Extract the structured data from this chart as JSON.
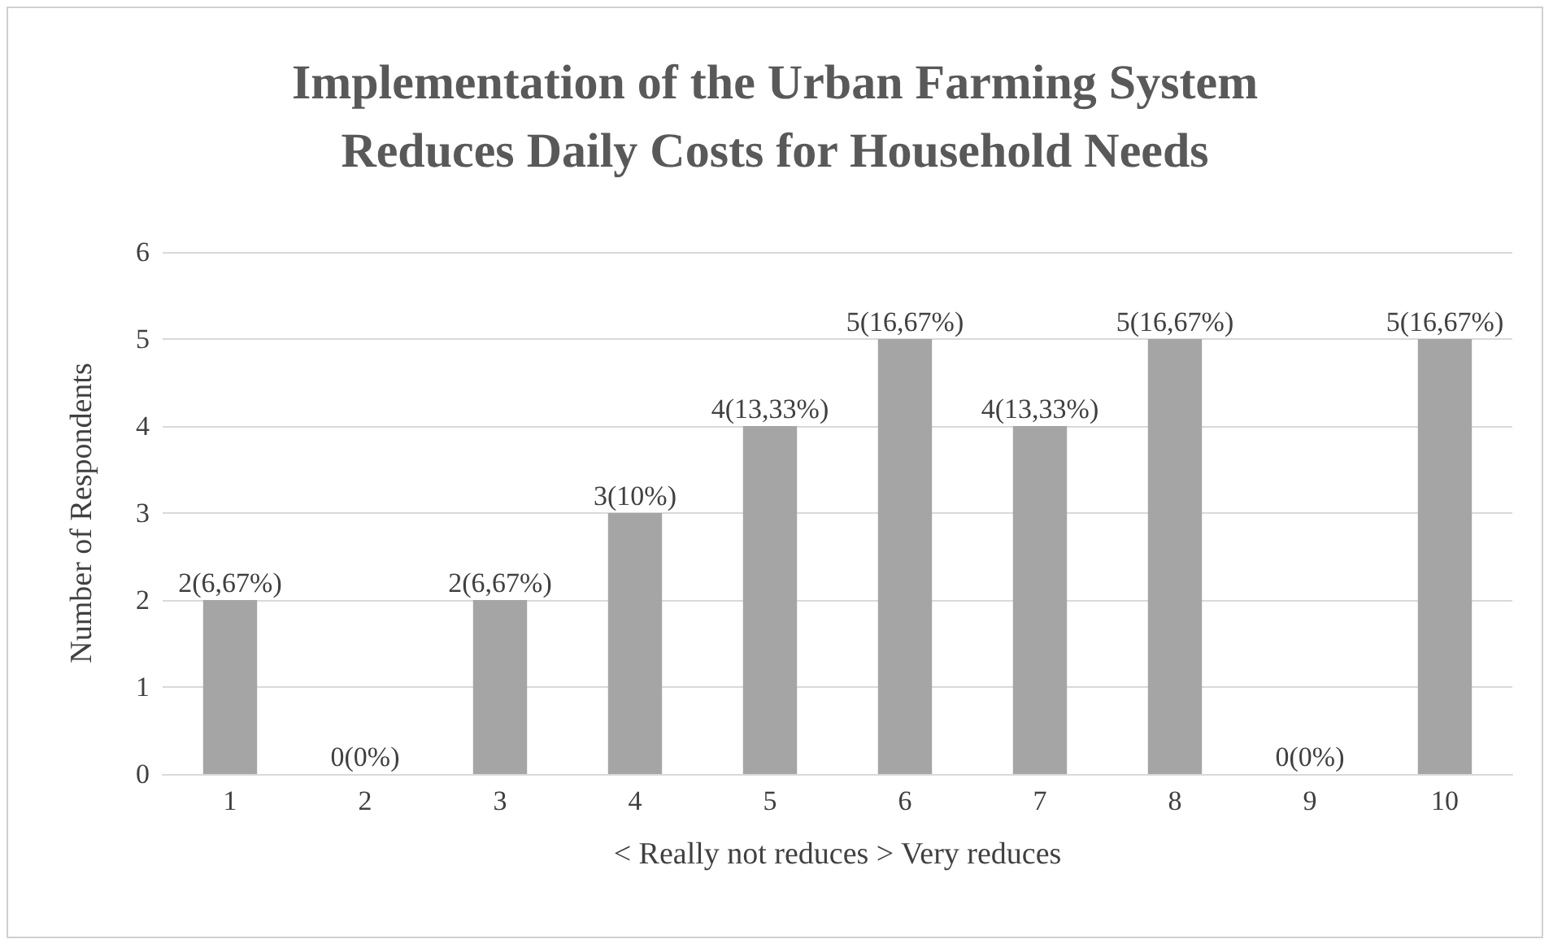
{
  "chart_data": {
    "type": "bar",
    "title": "Implementation of the Urban Farming System\nReduces Daily Costs for Household Needs",
    "xlabel": "< Really not reduces > Very reduces",
    "ylabel": "Number of Respondents",
    "categories": [
      "1",
      "2",
      "3",
      "4",
      "5",
      "6",
      "7",
      "8",
      "9",
      "10"
    ],
    "values": [
      2,
      0,
      2,
      3,
      4,
      5,
      4,
      5,
      0,
      5
    ],
    "value_labels": [
      "2(6,67%)",
      "0(0%)",
      "2(6,67%)",
      "3(10%)",
      "4(13,33%)",
      "5(16,67%)",
      "4(13,33%)",
      "5(16,67%)",
      "0(0%)",
      "5(16,67%)"
    ],
    "color": "#a5a5a5",
    "ylim": [
      0,
      6
    ],
    "yticks": [
      0,
      1,
      2,
      3,
      4,
      5,
      6
    ],
    "grid": "y"
  }
}
